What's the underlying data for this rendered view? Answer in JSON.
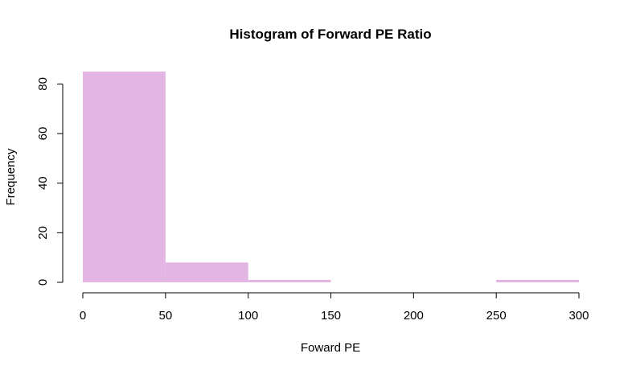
{
  "chart_data": {
    "type": "bar",
    "title": "Histogram of Forward PE Ratio",
    "xlabel": "Foward PE",
    "ylabel": "Frequency",
    "bin_edges": [
      0,
      50,
      100,
      150,
      200,
      250,
      300
    ],
    "values": [
      85,
      8,
      1,
      0,
      0,
      1
    ],
    "xlim": [
      0,
      300
    ],
    "ylim": [
      0,
      85
    ],
    "x_ticks": [
      0,
      50,
      100,
      150,
      200,
      250,
      300
    ],
    "y_ticks": [
      0,
      20,
      40,
      60,
      80
    ],
    "grid": false,
    "bar_color": "#E3B5E3"
  }
}
